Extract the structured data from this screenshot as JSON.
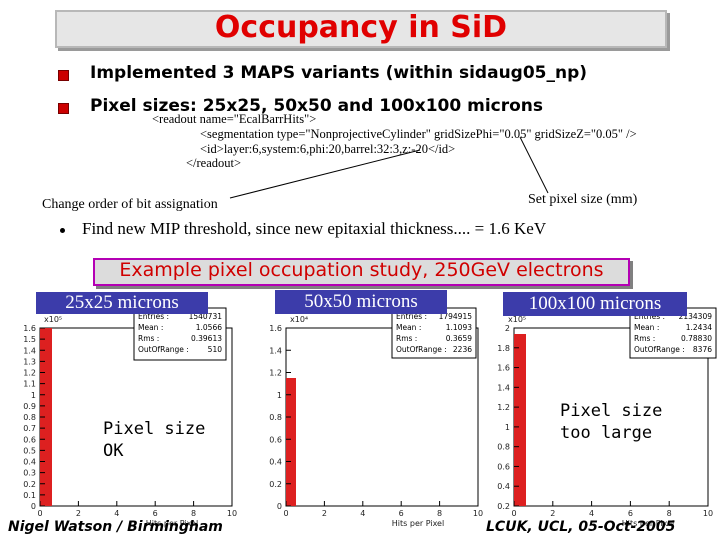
{
  "title": "Occupancy in SiD",
  "bullets": [
    "Implemented 3 MAPS variants (within sidaug05_np)",
    "Pixel sizes: 25x25, 50x50 and 100x100 microns"
  ],
  "xml_lines": [
    "<readout name=\"EcalBarrHits\">",
    "<segmentation type=\"NonprojectiveCylinder\" gridSizePhi=\"0.05\" gridSizeZ=\"0.05\" />",
    "<id>layer:6,system:6,phi:20,barrel:32:3,z:-20</id>",
    "</readout>"
  ],
  "note_left": "Change order of bit assignation",
  "note_right": "Set pixel size (mm)",
  "mip_bullet": "Find new MIP threshold, since new epitaxial thickness.... = 1.6 KeV",
  "example_title": "Example pixel occupation study, 250GeV electrons",
  "panels": [
    {
      "label": "25x25 microns",
      "exp": "x10⁵",
      "y_ticks": [
        "1.6",
        "1.5",
        "1.4",
        "1.3",
        "1.2",
        "1.1",
        "1",
        "0.9",
        "0.8",
        "0.7",
        "0.6",
        "0.5",
        "0.4",
        "0.3",
        "0.2",
        "0.1",
        "0"
      ],
      "x_ticks": [
        "0",
        "2",
        "4",
        "6",
        "8",
        "10"
      ],
      "xlabel": "Hits per Pixel",
      "stats": [
        [
          "Entries :",
          "1540731"
        ],
        [
          "Mean :",
          "1.0566"
        ],
        [
          "Rms :",
          "0.39613"
        ],
        [
          "OutOfRange :",
          "510"
        ]
      ],
      "note": "Pixel size OK"
    },
    {
      "label": "50x50 microns",
      "exp": "x10⁴",
      "y_ticks": [
        "1.6",
        "1.4",
        "1.2",
        "1",
        "0.8",
        "0.6",
        "0.4",
        "0.2",
        "0"
      ],
      "x_ticks": [
        "0",
        "2",
        "4",
        "6",
        "8",
        "10"
      ],
      "xlabel": "Hits per Pixel",
      "stats": [
        [
          "Entries :",
          "1794915"
        ],
        [
          "Mean :",
          "1.1093"
        ],
        [
          "Rms :",
          "0.3659"
        ],
        [
          "OutOfRange :",
          "2236"
        ]
      ],
      "note": ""
    },
    {
      "label": "100x100 microns",
      "exp": "x10⁵",
      "y_ticks": [
        "2",
        "1.8",
        "1.6",
        "1.4",
        "1.2",
        "1",
        "0.8",
        "0.6",
        "0.4",
        "0.2"
      ],
      "x_ticks": [
        "0",
        "2",
        "4",
        "6",
        "8",
        "10"
      ],
      "xlabel": "Hits per Pixel",
      "stats": [
        [
          "Entries :",
          "2134309"
        ],
        [
          "Mean :",
          "1.2434"
        ],
        [
          "Rms :",
          "0.78830"
        ],
        [
          "OutOfRange :",
          "8376"
        ]
      ],
      "note": "Pixel size too large"
    }
  ],
  "footer_left": "Nigel Watson / Birmingham",
  "footer_right": "LCUK, UCL, 05-Oct-2005",
  "colors": {
    "title": "#e00000",
    "bullet": "#cc0000",
    "bars": "#dd2020",
    "label_bg": "#3c3caa",
    "example_border": "#b400b4"
  }
}
